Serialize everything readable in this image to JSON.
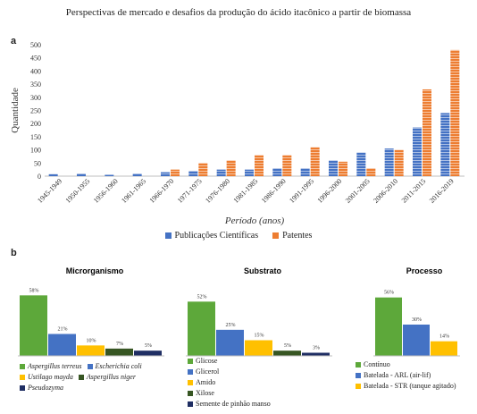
{
  "figure_title": "Perspectivas de mercado e desafios da produção do ácido itacônico a partir de biomassa",
  "panel_a_label": "a",
  "panel_b_label": "b",
  "colors": {
    "blue": "#4472C4",
    "orange": "#ED7D31",
    "green": "#5DA83A",
    "yellow": "#FFC000",
    "darkgreen": "#375623",
    "navy": "#1F2E63"
  },
  "chart_data": [
    {
      "type": "bar",
      "panel": "a",
      "categories": [
        "1945-1949",
        "1950-1955",
        "1956-1960",
        "1961-1965",
        "1966-1970",
        "1971-1975",
        "1976-1980",
        "1981-1985",
        "1986-1990",
        "1991-1995",
        "1996-2000",
        "2001-2005",
        "2006-2010",
        "2011-2015",
        "2016-2019"
      ],
      "series": [
        {
          "name": "Publicações Científicas",
          "color": "#4472C4",
          "values": [
            8,
            10,
            5,
            10,
            15,
            20,
            25,
            25,
            30,
            30,
            60,
            90,
            105,
            185,
            240
          ]
        },
        {
          "name": "Patentes",
          "color": "#ED7D31",
          "values": [
            null,
            null,
            null,
            null,
            25,
            50,
            60,
            80,
            80,
            110,
            55,
            30,
            100,
            330,
            480
          ]
        }
      ],
      "xlabel": "Período (anos)",
      "ylabel": "Quantidade",
      "ylim": [
        0,
        500
      ],
      "yticks": [
        0,
        50,
        100,
        150,
        200,
        250,
        300,
        350,
        400,
        450,
        500
      ],
      "legend": "bottom",
      "grid": false
    },
    {
      "type": "bar",
      "panel": "b",
      "title": "Microrganismo",
      "categories": [
        "Aspergillus terreus",
        "Escherichia coli",
        "Ustilago mayda",
        "Aspergillus niger",
        "Pseudozyma"
      ],
      "italic_categories": true,
      "colors": [
        "#5DA83A",
        "#4472C4",
        "#FFC000",
        "#375623",
        "#1F2E63"
      ],
      "values": [
        58,
        21,
        10,
        7,
        5
      ],
      "data_labels": [
        "58%",
        "21%",
        "10%",
        "7%",
        "5%"
      ],
      "legend_rows": [
        [
          0,
          1
        ],
        [
          2,
          3
        ],
        [
          4
        ]
      ]
    },
    {
      "type": "bar",
      "panel": "b",
      "title": "Substrato",
      "categories": [
        "Glicose",
        "Glicerol",
        "Amido",
        "Xilose",
        "Semente de pinhão manso"
      ],
      "colors": [
        "#5DA83A",
        "#4472C4",
        "#FFC000",
        "#375623",
        "#1F2E63"
      ],
      "values": [
        52,
        25,
        15,
        5,
        3
      ],
      "data_labels": [
        "52%",
        "25%",
        "15%",
        "5%",
        "3%"
      ],
      "legend_rows": [
        [
          0
        ],
        [
          1
        ],
        [
          2
        ],
        [
          3
        ],
        [
          4
        ]
      ]
    },
    {
      "type": "bar",
      "panel": "b",
      "title": "Processo",
      "categories": [
        "Contínuo",
        "Batelada - ARL (air-lif)",
        "Batelada - STR (tanque agitado)"
      ],
      "colors": [
        "#5DA83A",
        "#4472C4",
        "#FFC000"
      ],
      "values": [
        56,
        30,
        14
      ],
      "data_labels": [
        "56%",
        "30%",
        "14%"
      ],
      "legend_rows": [
        [
          0
        ],
        [
          1
        ],
        [
          2
        ]
      ]
    }
  ]
}
